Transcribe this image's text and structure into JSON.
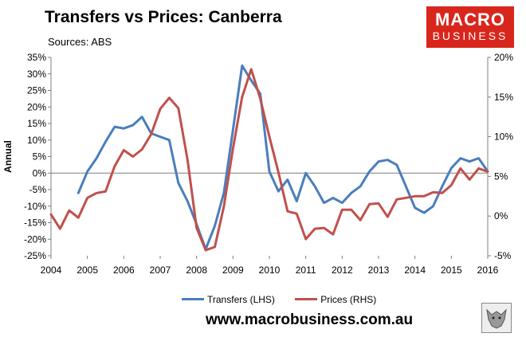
{
  "title": "Transfers vs Prices: Canberra",
  "subtitle": "Sources: ABS",
  "logo": {
    "line1": "MACRO",
    "line2": "BUSINESS",
    "color": "#d9261c"
  },
  "website": "www.macrobusiness.com.au",
  "wolf_icon": "wolf-logo-icon",
  "chart_data": {
    "type": "line",
    "ylabel": "Annual",
    "xlim": [
      2004,
      2016
    ],
    "x_ticks": [
      "2004",
      "2005",
      "2006",
      "2007",
      "2008",
      "2009",
      "2010",
      "2011",
      "2012",
      "2013",
      "2014",
      "2015",
      "2016"
    ],
    "y_left": {
      "min": -25,
      "max": 35,
      "step": 5,
      "ticks": [
        "-25%",
        "-20%",
        "-15%",
        "-10%",
        "-5%",
        "0%",
        "5%",
        "10%",
        "15%",
        "20%",
        "25%",
        "30%",
        "35%"
      ]
    },
    "y_right": {
      "min": -5,
      "max": 20,
      "step": 5,
      "ticks": [
        "-5%",
        "0%",
        "5%",
        "10%",
        "15%",
        "20%"
      ]
    },
    "grid": false,
    "legend_position": "bottom",
    "series": [
      {
        "name": "Transfers (LHS)",
        "axis": "left",
        "color": "#4a7ebb",
        "x": [
          2004.75,
          2005.0,
          2005.25,
          2005.5,
          2005.75,
          2006.0,
          2006.25,
          2006.5,
          2006.75,
          2007.0,
          2007.25,
          2007.5,
          2007.75,
          2008.0,
          2008.25,
          2008.5,
          2008.75,
          2009.0,
          2009.25,
          2009.5,
          2009.75,
          2010.0,
          2010.25,
          2010.5,
          2010.75,
          2011.0,
          2011.25,
          2011.5,
          2011.75,
          2012.0,
          2012.25,
          2012.5,
          2012.75,
          2013.0,
          2013.25,
          2013.5,
          2013.75,
          2014.0,
          2014.25,
          2014.5,
          2014.75,
          2015.0,
          2015.25,
          2015.5,
          2015.75,
          2016.0
        ],
        "values": [
          -6,
          0.5,
          4.5,
          9.5,
          14,
          13.5,
          14.5,
          17,
          12,
          11,
          10,
          -3,
          -8.5,
          -15.5,
          -23,
          -16,
          -6,
          13,
          32.5,
          28,
          24,
          0.5,
          -5.5,
          -2,
          -8.5,
          0,
          -4,
          -9,
          -7.5,
          -9,
          -6,
          -4,
          0.5,
          3.5,
          4,
          2.5,
          -4,
          -10.5,
          -12,
          -10,
          -4,
          1.5,
          4.5,
          3.5,
          4.5,
          0.5
        ]
      },
      {
        "name": "Prices (RHS)",
        "axis": "right",
        "color": "#c0504d",
        "x": [
          2004.0,
          2004.25,
          2004.5,
          2004.75,
          2005.0,
          2005.25,
          2005.5,
          2005.75,
          2006.0,
          2006.25,
          2006.5,
          2006.75,
          2007.0,
          2007.25,
          2007.5,
          2007.75,
          2008.0,
          2008.25,
          2008.5,
          2008.75,
          2009.0,
          2009.25,
          2009.5,
          2009.75,
          2010.0,
          2010.25,
          2010.5,
          2010.75,
          2011.0,
          2011.25,
          2011.5,
          2011.75,
          2012.0,
          2012.25,
          2012.5,
          2012.75,
          2013.0,
          2013.25,
          2013.5,
          2013.75,
          2014.0,
          2014.25,
          2014.5,
          2014.75,
          2015.0,
          2015.25,
          2015.5,
          2015.75,
          2016.0
        ],
        "values": [
          0.2,
          -1.6,
          0.7,
          -0.2,
          2.3,
          2.9,
          3.1,
          6.3,
          8.3,
          7.5,
          8.4,
          10.3,
          13.5,
          14.9,
          13.6,
          7.1,
          -1.5,
          -4.3,
          -3.9,
          1.2,
          8.5,
          15,
          18.5,
          14.8,
          10,
          5.5,
          0.6,
          0.3,
          -2.9,
          -1.6,
          -1.5,
          -2.3,
          0.8,
          0.8,
          -0.5,
          1.5,
          1.6,
          -0.1,
          2.1,
          2.3,
          2.5,
          2.5,
          3,
          2.9,
          3.9,
          6,
          4.6,
          6,
          5.6
        ]
      }
    ]
  }
}
